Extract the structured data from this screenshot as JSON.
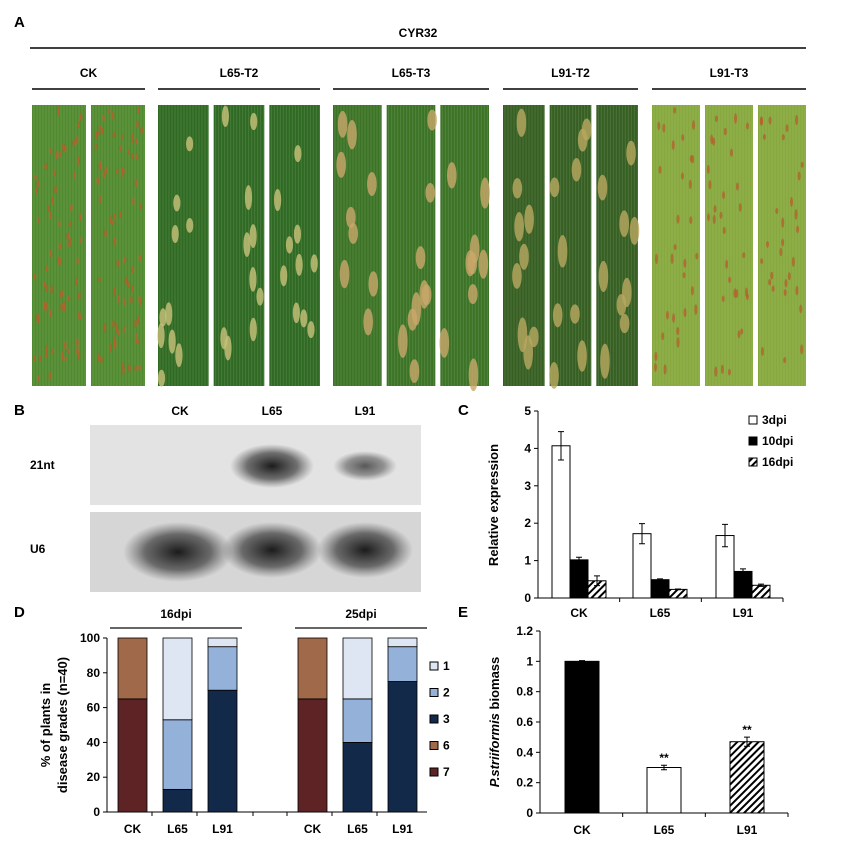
{
  "panel_a": {
    "label": "A",
    "strain": "CYR32",
    "groups": [
      {
        "name": "CK",
        "leaves": 2
      },
      {
        "name": "L65-T2",
        "leaves": 3
      },
      {
        "name": "L65-T3",
        "leaves": 3
      },
      {
        "name": "L91-T2",
        "leaves": 3
      },
      {
        "name": "L91-T3",
        "leaves": 3
      }
    ]
  },
  "panel_b": {
    "label": "B",
    "lanes": [
      "CK",
      "L65",
      "L91"
    ],
    "rows": [
      "21nt",
      "U6"
    ]
  },
  "chart_data": [
    {
      "panel": "C",
      "type": "bar",
      "ylabel": "Relative expression",
      "categories": [
        "CK",
        "L65",
        "L91"
      ],
      "ylim": [
        0,
        5
      ],
      "yticks": [
        0,
        1,
        2,
        3,
        4,
        5
      ],
      "legend_position": "top-right",
      "series": [
        {
          "name": "3dpi",
          "fill": "white",
          "values": [
            4.07,
            1.72,
            1.67
          ],
          "errors": [
            0.38,
            0.27,
            0.3
          ]
        },
        {
          "name": "10dpi",
          "fill": "black",
          "values": [
            1.02,
            0.49,
            0.71
          ],
          "errors": [
            0.07,
            0.02,
            0.07
          ]
        },
        {
          "name": "16dpi",
          "fill": "hatched",
          "values": [
            0.46,
            0.23,
            0.34
          ],
          "errors": [
            0.13,
            0.01,
            0.03
          ]
        }
      ]
    },
    {
      "panel": "D",
      "type": "bar",
      "stacked": true,
      "ylabel": [
        "% of plants in",
        "disease grades (n=40)"
      ],
      "groups": [
        "16dpi",
        "25dpi"
      ],
      "categories": [
        "CK",
        "L65",
        "L91",
        "CK",
        "L65",
        "L91"
      ],
      "ylim": [
        0,
        100
      ],
      "yticks": [
        0,
        20,
        40,
        60,
        80,
        100
      ],
      "legend_position": "right",
      "series": [
        {
          "name": "7",
          "color": "#5e2324",
          "values": [
            65,
            0,
            0,
            65,
            0,
            0
          ]
        },
        {
          "name": "6",
          "color": "#a0694a",
          "values": [
            35,
            0,
            0,
            35,
            0,
            0
          ]
        },
        {
          "name": "3",
          "color": "#13294a",
          "values": [
            0,
            13,
            70,
            0,
            40,
            75
          ]
        },
        {
          "name": "2",
          "color": "#93b1d9",
          "values": [
            0,
            40,
            25,
            0,
            25,
            20
          ]
        },
        {
          "name": "1",
          "color": "#dde6f2",
          "values": [
            0,
            47,
            5,
            0,
            35,
            5
          ]
        }
      ],
      "legend_order": [
        "1",
        "2",
        "3",
        "6",
        "7"
      ]
    },
    {
      "panel": "E",
      "type": "bar",
      "ylabel_italic": "P.striiformis",
      "ylabel_rest": " biomass",
      "categories": [
        "CK",
        "L65",
        "L91"
      ],
      "fills": [
        "black",
        "white",
        "hatched"
      ],
      "values": [
        1.0,
        0.3,
        0.47
      ],
      "errors": [
        0.005,
        0.015,
        0.03
      ],
      "significance": [
        "",
        "**",
        "**"
      ],
      "ylim": [
        0,
        1.2
      ],
      "yticks": [
        "0",
        "0.2",
        "0.4",
        "0.6",
        "0.8",
        "1",
        "1.2"
      ]
    }
  ]
}
